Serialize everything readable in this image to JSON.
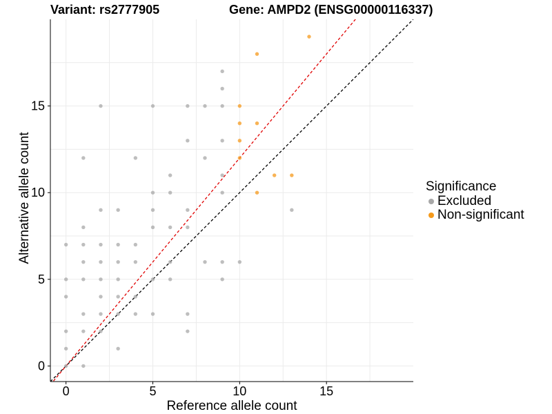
{
  "chart_data": {
    "type": "scatter",
    "title_left": "Variant: rs2777905",
    "title_right": "Gene: AMPD2 (ENSG00000116337)",
    "xlabel": "Reference allele count",
    "ylabel": "Alternative allele count",
    "xlim": [
      -0.9,
      20
    ],
    "ylim": [
      -0.9,
      20
    ],
    "xticks": [
      0,
      5,
      10,
      15
    ],
    "yticks": [
      0,
      5,
      10,
      15
    ],
    "grid": true,
    "legend": {
      "title": "Significance",
      "position": "right",
      "items": [
        {
          "label": "Excluded",
          "color": "#a8a8a8"
        },
        {
          "label": "Non-significant",
          "color": "#f59a1c"
        }
      ]
    },
    "reference_lines": [
      {
        "slope": 1,
        "color": "#000000",
        "style": "dashed"
      },
      {
        "slope": 1.2,
        "color": "#e00000",
        "style": "dashed"
      }
    ],
    "series": [
      {
        "name": "Excluded",
        "color": "#a8a8a8",
        "points": [
          [
            0,
            7
          ],
          [
            0,
            5
          ],
          [
            0,
            4
          ],
          [
            0,
            2
          ],
          [
            0,
            1
          ],
          [
            0,
            0
          ],
          [
            1,
            12
          ],
          [
            1,
            8
          ],
          [
            1,
            7
          ],
          [
            1,
            6
          ],
          [
            1,
            5
          ],
          [
            1,
            3
          ],
          [
            1,
            2
          ],
          [
            1,
            0
          ],
          [
            2,
            15
          ],
          [
            2,
            9
          ],
          [
            2,
            7
          ],
          [
            2,
            6
          ],
          [
            2,
            5
          ],
          [
            2,
            4
          ],
          [
            2,
            3
          ],
          [
            2,
            2
          ],
          [
            3,
            9
          ],
          [
            3,
            7
          ],
          [
            3,
            6
          ],
          [
            3,
            5
          ],
          [
            3,
            4
          ],
          [
            3,
            3
          ],
          [
            3,
            1
          ],
          [
            4,
            12
          ],
          [
            4,
            7
          ],
          [
            4,
            6
          ],
          [
            4,
            4
          ],
          [
            4,
            3
          ],
          [
            5,
            15
          ],
          [
            5,
            10
          ],
          [
            5,
            9
          ],
          [
            5,
            8
          ],
          [
            5,
            5
          ],
          [
            5,
            3
          ],
          [
            6,
            11
          ],
          [
            6,
            10
          ],
          [
            6,
            8
          ],
          [
            6,
            6
          ],
          [
            6,
            5
          ],
          [
            7,
            15
          ],
          [
            7,
            13
          ],
          [
            7,
            9
          ],
          [
            7,
            8
          ],
          [
            7,
            3
          ],
          [
            7,
            2
          ],
          [
            8,
            15
          ],
          [
            8,
            12
          ],
          [
            8,
            6
          ],
          [
            9,
            17
          ],
          [
            9,
            16
          ],
          [
            9,
            15
          ],
          [
            9,
            13
          ],
          [
            9,
            11
          ],
          [
            9,
            10
          ],
          [
            9,
            6
          ],
          [
            9,
            5
          ],
          [
            10,
            6
          ],
          [
            13,
            9
          ]
        ]
      },
      {
        "name": "Non-significant",
        "color": "#f59a1c",
        "points": [
          [
            10,
            15
          ],
          [
            10,
            14
          ],
          [
            10,
            13
          ],
          [
            10,
            12
          ],
          [
            11,
            18
          ],
          [
            11,
            14
          ],
          [
            11,
            10
          ],
          [
            12,
            11
          ],
          [
            13,
            11
          ],
          [
            14,
            19
          ]
        ]
      }
    ]
  }
}
